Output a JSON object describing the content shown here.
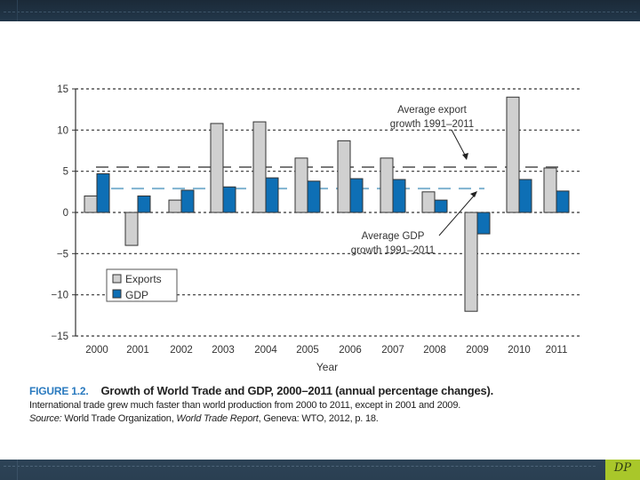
{
  "chart_data": {
    "type": "bar",
    "title": "",
    "xlabel": "Year",
    "ylabel": "",
    "ylim": [
      -15,
      15
    ],
    "yticks": [
      "15",
      "10",
      "5",
      "0",
      "−5",
      "−10",
      "−15"
    ],
    "ytick_values": [
      15,
      10,
      5,
      0,
      -5,
      -10,
      -15
    ],
    "grid": true,
    "categories": [
      "2000",
      "2001",
      "2002",
      "2003",
      "2004",
      "2005",
      "2006",
      "2007",
      "2008",
      "2009",
      "2010",
      "2011"
    ],
    "series": [
      {
        "name": "Exports",
        "color": "#d0d0d0",
        "values": [
          2.0,
          -4.0,
          1.5,
          10.8,
          11.0,
          6.6,
          8.7,
          6.6,
          2.5,
          -12.0,
          14.0,
          5.4
        ]
      },
      {
        "name": "GDP",
        "color": "#0e6fb5",
        "values": [
          4.7,
          2.0,
          2.7,
          3.1,
          4.2,
          3.8,
          4.1,
          4.0,
          1.5,
          -2.6,
          4.0,
          2.6
        ]
      }
    ],
    "reference_lines": [
      {
        "name": "Average export growth 1991–2011",
        "value": 5.5,
        "color": "#7a7a7a"
      },
      {
        "name": "Average GDP growth 1991–2011",
        "value": 2.9,
        "color": "#7fb3d0"
      }
    ],
    "annotations": [
      {
        "line1": "Average export",
        "line2": "growth 1991–2011"
      },
      {
        "line1": "Average GDP",
        "line2": "growth 1991–2011"
      }
    ],
    "legend": {
      "placement": "bottom-left",
      "items": [
        "Exports",
        "GDP"
      ]
    }
  },
  "caption": {
    "figure_label": "FIGURE 1.2.",
    "title": "Growth of World Trade and GDP, 2000–2011 (annual percentage changes).",
    "description": "International trade grew much faster than world production from 2000 to 2011, except in 2001 and 2009.",
    "source_prefix": "Source:",
    "source_org": " World Trade Organization, ",
    "source_title": "World Trade Report",
    "source_suffix": ", Geneva: WTO, 2012, p. 18."
  },
  "slide": {
    "badge": "DP"
  }
}
